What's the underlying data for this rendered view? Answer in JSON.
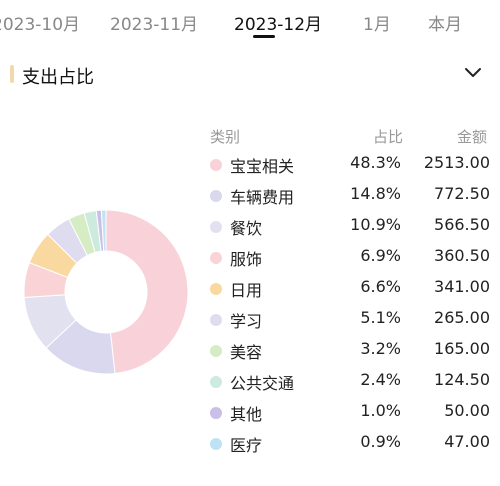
{
  "tabs": [
    "2023-10月",
    "2023-11月",
    "2023-12月",
    "1月",
    "本月"
  ],
  "active_tab": "2023-12月",
  "section": {
    "title": "支出占比",
    "accent_color": "#f3d9a7"
  },
  "table_header": {
    "category": "类别",
    "percent": "占比",
    "amount": "金额"
  },
  "categories": [
    {
      "name": "宝宝相关",
      "percent": "48.3%",
      "amount": "2513.00",
      "color": "#f8d2d8"
    },
    {
      "name": "车辆费用",
      "percent": "14.8%",
      "amount": "772.50",
      "color": "#d9d8ee"
    },
    {
      "name": "餐饮",
      "percent": "10.9%",
      "amount": "566.50",
      "color": "#e2e1ef"
    },
    {
      "name": "服饰",
      "percent": "6.9%",
      "amount": "360.50",
      "color": "#f9d3d6"
    },
    {
      "name": "日用",
      "percent": "6.6%",
      "amount": "341.00",
      "color": "#f9d99f"
    },
    {
      "name": "学习",
      "percent": "5.1%",
      "amount": "265.00",
      "color": "#dfdcf0"
    },
    {
      "name": "美容",
      "percent": "3.2%",
      "amount": "165.00",
      "color": "#d6ecc4"
    },
    {
      "name": "公共交通",
      "percent": "2.4%",
      "amount": "124.50",
      "color": "#cdeadf"
    },
    {
      "name": "其他",
      "percent": "1.0%",
      "amount": "50.00",
      "color": "#cbbfe7"
    },
    {
      "name": "医疗",
      "percent": "0.9%",
      "amount": "47.00",
      "color": "#bfe3f4"
    }
  ],
  "chart_data": {
    "type": "pie",
    "title": "支出占比",
    "categories": [
      "宝宝相关",
      "车辆费用",
      "餐饮",
      "服饰",
      "日用",
      "学习",
      "美容",
      "公共交通",
      "其他",
      "医疗"
    ],
    "values": [
      48.3,
      14.8,
      10.9,
      6.9,
      6.6,
      5.1,
      3.2,
      2.4,
      1.0,
      0.9
    ],
    "amounts": [
      2513.0,
      772.5,
      566.5,
      360.5,
      341.0,
      265.0,
      165.0,
      124.5,
      50.0,
      47.0
    ],
    "donut": true,
    "legend": "right"
  }
}
